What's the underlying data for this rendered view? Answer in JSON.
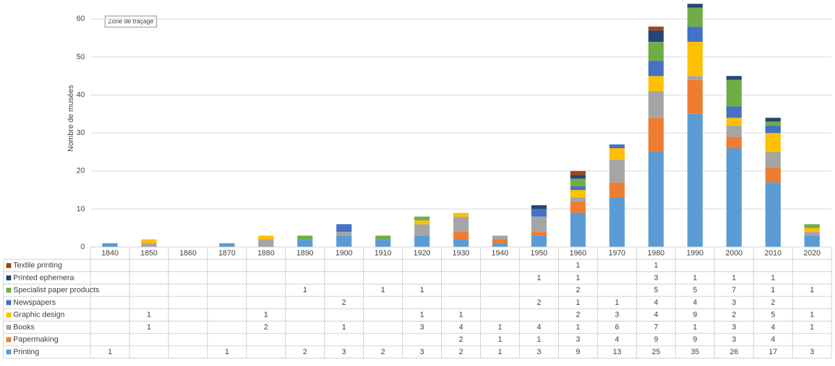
{
  "chart_data": {
    "type": "bar",
    "stacked": true,
    "y_label": "Nombre de musées",
    "annotation": "Zone de traçage",
    "categories": [
      "1840",
      "1850",
      "1860",
      "1870",
      "1880",
      "1890",
      "1900",
      "1910",
      "1920",
      "1930",
      "1940",
      "1950",
      "1960",
      "1970",
      "1980",
      "1990",
      "2000",
      "2010",
      "2020"
    ],
    "series": [
      {
        "name": "Printing",
        "color": "#5b9bd5",
        "values": [
          1,
          null,
          null,
          1,
          null,
          2,
          3,
          2,
          3,
          2,
          1,
          3,
          9,
          13,
          25,
          35,
          26,
          17,
          3
        ]
      },
      {
        "name": "Papermaking",
        "color": "#ed7d31",
        "values": [
          null,
          null,
          null,
          null,
          null,
          null,
          null,
          null,
          null,
          2,
          1,
          1,
          3,
          4,
          9,
          9,
          3,
          4,
          null
        ]
      },
      {
        "name": "Books",
        "color": "#a5a5a5",
        "values": [
          null,
          1,
          null,
          null,
          2,
          null,
          1,
          null,
          3,
          4,
          1,
          4,
          1,
          6,
          7,
          1,
          3,
          4,
          1
        ]
      },
      {
        "name": "Graphic design",
        "color": "#ffc000",
        "values": [
          null,
          1,
          null,
          null,
          1,
          null,
          null,
          null,
          1,
          1,
          null,
          null,
          2,
          3,
          4,
          9,
          2,
          5,
          1
        ]
      },
      {
        "name": "Newspapers",
        "color": "#4472c4",
        "values": [
          null,
          null,
          null,
          null,
          null,
          null,
          2,
          null,
          null,
          null,
          null,
          2,
          1,
          1,
          4,
          4,
          3,
          2,
          null
        ]
      },
      {
        "name": "Specialist paper products",
        "color": "#70ad47",
        "values": [
          null,
          null,
          null,
          null,
          null,
          1,
          null,
          1,
          1,
          null,
          null,
          null,
          2,
          null,
          5,
          5,
          7,
          1,
          1
        ]
      },
      {
        "name": "Printed ephemera",
        "color": "#264478",
        "values": [
          null,
          null,
          null,
          null,
          null,
          null,
          null,
          null,
          null,
          null,
          null,
          1,
          1,
          null,
          3,
          1,
          1,
          1,
          null
        ]
      },
      {
        "name": "Textile printing",
        "color": "#9e480e",
        "values": [
          null,
          null,
          null,
          null,
          null,
          null,
          null,
          null,
          null,
          null,
          null,
          null,
          1,
          null,
          1,
          null,
          null,
          null,
          null
        ]
      }
    ],
    "ylim": [
      0,
      65
    ],
    "yticks": [
      0,
      10,
      20,
      30,
      40,
      50,
      60
    ],
    "grid": true
  }
}
